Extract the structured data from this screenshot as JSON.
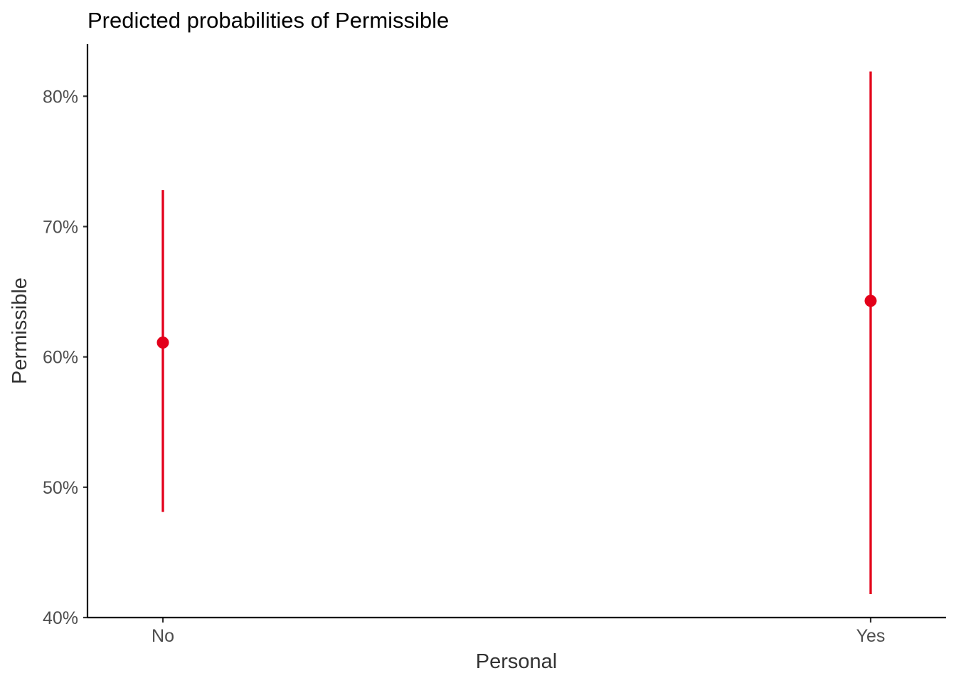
{
  "chart_data": {
    "type": "scatter",
    "title": "Predicted probabilities of Permissible",
    "xlabel": "Personal",
    "ylabel": "Permissible",
    "categories": [
      "No",
      "Yes"
    ],
    "values": [
      0.611,
      0.643
    ],
    "ci_low": [
      0.481,
      0.418
    ],
    "ci_high": [
      0.728,
      0.819
    ],
    "ylim": [
      0.4,
      0.84
    ],
    "yticks": [
      0.4,
      0.5,
      0.6,
      0.7,
      0.8
    ],
    "ytick_labels": [
      "40%",
      "50%",
      "60%",
      "70%",
      "80%"
    ],
    "grid": false,
    "legend": "none",
    "color": "#e3001a"
  }
}
